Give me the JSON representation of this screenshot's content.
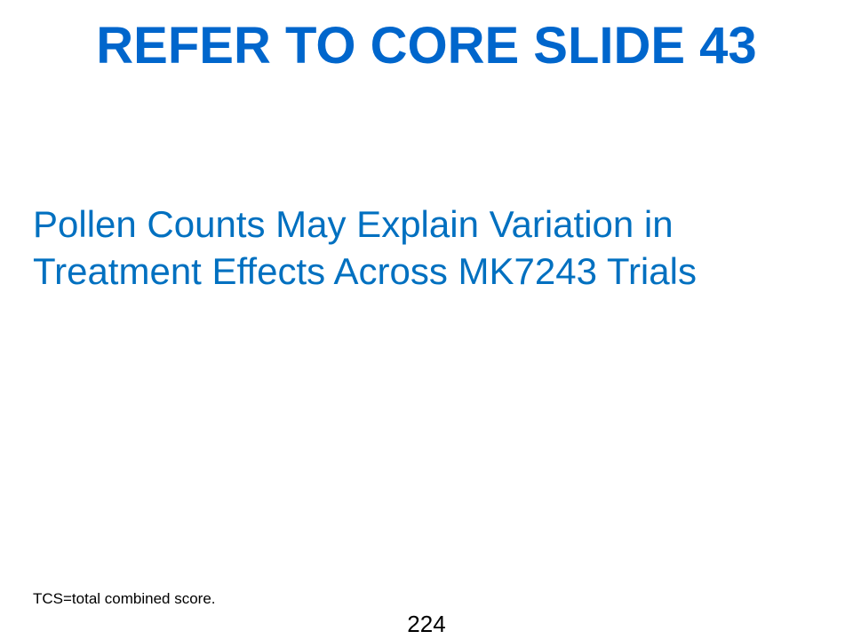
{
  "slide": {
    "title": "REFER TO CORE SLIDE 43",
    "subtitle_lines": [
      "Pollen Counts May Explain Variation in",
      "Treatment Effects Across MK7243 Trials"
    ],
    "footnote": "TCS=total combined score.",
    "page_number": "224"
  },
  "colors": {
    "title": "#0066CC",
    "body": "#0070C0",
    "footnote": "#000000",
    "background": "#FFFFFF"
  }
}
